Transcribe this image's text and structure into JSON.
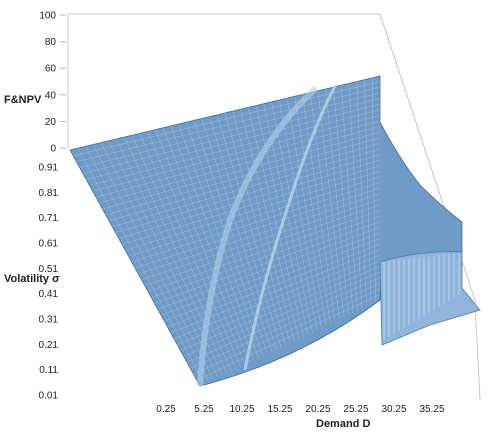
{
  "chart_data": {
    "type": "surface",
    "zlabel": "F&NPV",
    "ylabel": "Volatility σ",
    "xlabel": "Demand D",
    "z_ticks": [
      "0",
      "20",
      "40",
      "60",
      "80",
      "100"
    ],
    "y_ticks": [
      "0.01",
      "0.11",
      "0.21",
      "0.31",
      "0.41",
      "0.51",
      "0.61",
      "0.71",
      "0.81",
      "0.91"
    ],
    "x_ticks": [
      "0.25",
      "5.25",
      "10.25",
      "15.25",
      "20.25",
      "25.25",
      "30.25",
      "35.25"
    ],
    "zlim": [
      0,
      100
    ],
    "ylim": [
      0.01,
      0.91
    ],
    "xlim": [
      0.25,
      35.25
    ],
    "colors": {
      "surface": "#6f9bc6",
      "surface_light": "#a9c9e6",
      "wire": "#ffffff",
      "wall": "#c8c8c8"
    }
  }
}
